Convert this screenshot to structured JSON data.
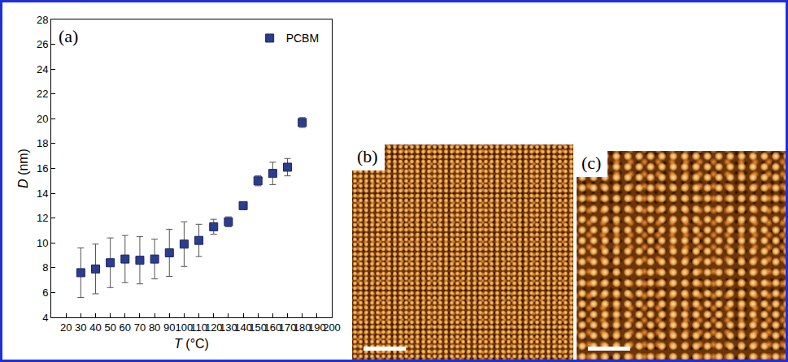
{
  "chart_data": {
    "type": "scatter",
    "x_label": "T (°C)",
    "y_label": "D (nm)",
    "annotations": [
      "(a)"
    ],
    "x": [
      30,
      40,
      50,
      60,
      70,
      80,
      90,
      100,
      110,
      120,
      130,
      140,
      150,
      160,
      170,
      180
    ],
    "series": [
      {
        "name": "PCBM",
        "color": "#2b3d8c",
        "marker": "square",
        "values": [
          7.6,
          7.9,
          8.4,
          8.7,
          8.6,
          8.7,
          9.2,
          9.9,
          10.2,
          11.3,
          11.7,
          13.0,
          15.0,
          15.6,
          16.1,
          19.7
        ],
        "errors": [
          2.0,
          2.0,
          2.0,
          1.9,
          1.9,
          1.6,
          1.9,
          1.8,
          1.3,
          0.6,
          0.4,
          0.2,
          0.4,
          0.9,
          0.7,
          0.4
        ]
      }
    ],
    "xlim": [
      10,
      200
    ],
    "xticks": [
      20,
      30,
      40,
      50,
      60,
      70,
      80,
      90,
      100,
      110,
      120,
      130,
      140,
      150,
      160,
      170,
      180,
      190,
      200
    ],
    "ylim": [
      4,
      28
    ],
    "yticks": [
      4,
      6,
      8,
      10,
      12,
      14,
      16,
      18,
      20,
      22,
      24,
      26,
      28
    ],
    "grid": false,
    "legend": "top-right"
  },
  "images": [
    {
      "label": "(b)"
    },
    {
      "label": "(c)"
    }
  ]
}
